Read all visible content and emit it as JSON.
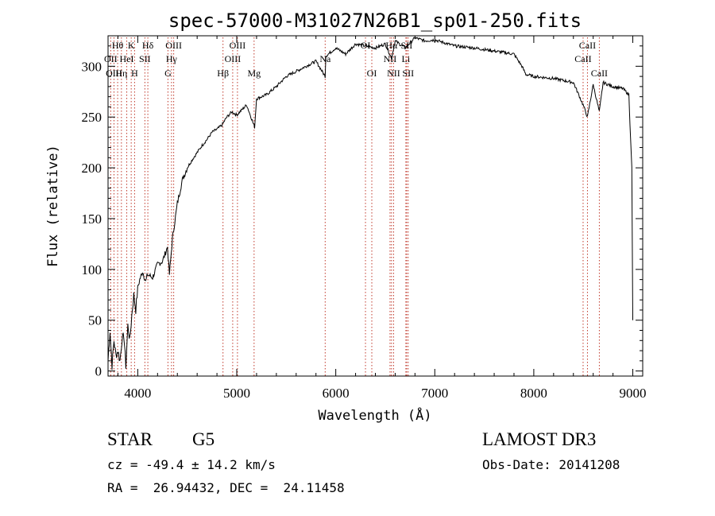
{
  "chart_data": {
    "type": "line",
    "title": "spec-57000-M31027N26B1_sp01-250.fits",
    "xlabel": "Wavelength (Å)",
    "ylabel": "Flux (relative)",
    "xlim": [
      3700,
      9100
    ],
    "ylim": [
      -5,
      330
    ],
    "xticks": [
      4000,
      5000,
      6000,
      7000,
      8000,
      9000
    ],
    "yticks": [
      0,
      50,
      100,
      150,
      200,
      250,
      300
    ],
    "grid": false,
    "x": [
      3700,
      3720,
      3740,
      3760,
      3780,
      3800,
      3820,
      3840,
      3860,
      3880,
      3900,
      3920,
      3940,
      3960,
      3980,
      4000,
      4020,
      4050,
      4080,
      4100,
      4150,
      4200,
      4250,
      4300,
      4320,
      4350,
      4400,
      4450,
      4500,
      4550,
      4600,
      4650,
      4700,
      4750,
      4800,
      4850,
      4900,
      4950,
      5000,
      5100,
      5180,
      5200,
      5300,
      5400,
      5500,
      5600,
      5700,
      5800,
      5893,
      5900,
      6000,
      6100,
      6200,
      6300,
      6400,
      6500,
      6563,
      6600,
      6700,
      6800,
      6900,
      7000,
      7200,
      7400,
      7600,
      7800,
      7880,
      7920,
      8000,
      8200,
      8400,
      8498,
      8542,
      8600,
      8662,
      8700,
      8800,
      8900,
      8960,
      8990,
      9000
    ],
    "y": [
      10,
      40,
      5,
      30,
      15,
      20,
      10,
      30,
      35,
      5,
      45,
      30,
      55,
      75,
      60,
      82,
      90,
      98,
      88,
      95,
      92,
      105,
      108,
      122,
      95,
      130,
      165,
      188,
      200,
      208,
      215,
      222,
      228,
      235,
      238,
      242,
      250,
      255,
      252,
      262,
      240,
      268,
      272,
      280,
      290,
      295,
      300,
      305,
      290,
      310,
      318,
      312,
      322,
      320,
      318,
      322,
      308,
      325,
      318,
      328,
      325,
      326,
      320,
      318,
      315,
      312,
      300,
      292,
      290,
      288,
      284,
      262,
      250,
      282,
      255,
      284,
      280,
      278,
      272,
      200,
      50
    ],
    "lines": [
      {
        "name": "Hθ",
        "wave": 3797,
        "row": 0
      },
      {
        "name": "OII",
        "wave": 3727,
        "row": 1
      },
      {
        "name": "OIII",
        "wave": 3760,
        "row": 2
      },
      {
        "name": "Hη",
        "wave": 3835,
        "row": 2
      },
      {
        "name": "K",
        "wave": 3934,
        "row": 0
      },
      {
        "name": "HeI",
        "wave": 3889,
        "row": 1
      },
      {
        "name": "H",
        "wave": 3968,
        "row": 2
      },
      {
        "name": "Hδ",
        "wave": 4102,
        "row": 0
      },
      {
        "name": "SII",
        "wave": 4072,
        "row": 1
      },
      {
        "name": "OIII",
        "wave": 4363,
        "row": 0
      },
      {
        "name": "Hγ",
        "wave": 4341,
        "row": 1
      },
      {
        "name": "G",
        "wave": 4305,
        "row": 2
      },
      {
        "name": "Hβ",
        "wave": 4861,
        "row": 2
      },
      {
        "name": "OIII",
        "wave": 5007,
        "row": 0
      },
      {
        "name": "OIII",
        "wave": 4959,
        "row": 1
      },
      {
        "name": "Mg",
        "wave": 5175,
        "row": 2
      },
      {
        "name": "Na",
        "wave": 5893,
        "row": 1
      },
      {
        "name": "OI",
        "wave": 6300,
        "row": 0
      },
      {
        "name": "OI",
        "wave": 6364,
        "row": 2
      },
      {
        "name": "Hα",
        "wave": 6563,
        "row": 0
      },
      {
        "name": "SII",
        "wave": 6716,
        "row": 0
      },
      {
        "name": "NII",
        "wave": 6548,
        "row": 1
      },
      {
        "name": "Li",
        "wave": 6708,
        "row": 1
      },
      {
        "name": "NII",
        "wave": 6584,
        "row": 2
      },
      {
        "name": "SII",
        "wave": 6731,
        "row": 2
      },
      {
        "name": "CaII",
        "wave": 8542,
        "row": 0
      },
      {
        "name": "CaII",
        "wave": 8498,
        "row": 1
      },
      {
        "name": "CaII",
        "wave": 8662,
        "row": 2
      }
    ]
  },
  "info": {
    "class": "STAR",
    "subclass": "G5",
    "survey": "LAMOST DR3",
    "redshift": "cz = -49.4 ± 14.2 km/s",
    "obs_date": "Obs-Date: 20141208",
    "coords": "RA =  26.94432, DEC =  24.11458"
  }
}
